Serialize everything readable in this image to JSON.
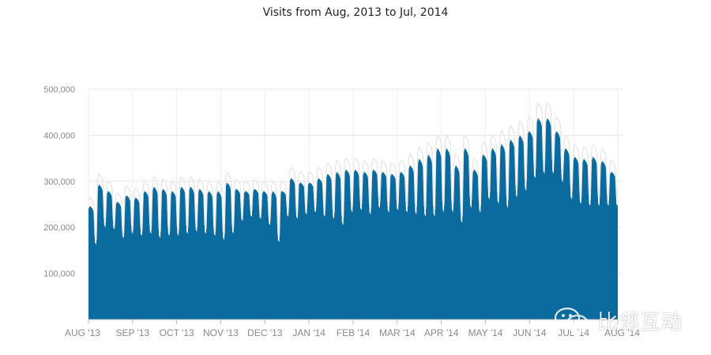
{
  "chart_data": {
    "type": "area",
    "title": "Visits from Aug, 2013 to Jul, 2014",
    "xlabel": "",
    "ylabel": "",
    "ylim": [
      0,
      500000
    ],
    "yticks": [
      "100,000",
      "200,000",
      "300,000",
      "400,000",
      "500,000"
    ],
    "ytick_values": [
      100000,
      200000,
      300000,
      400000,
      500000
    ],
    "x_tick_labels": [
      "AUG '13",
      "SEP '13",
      "OCT '13",
      "NOV '13",
      "DEC '13",
      "JAN '14",
      "FEB '14",
      "MAR '14",
      "APR '14",
      "MAY '14",
      "JUN '14",
      "JUL '14",
      "AUG '14"
    ],
    "x_start": "2013-08-01",
    "x_end": "2014-08-01",
    "grid": true,
    "colors": {
      "fill": "#0b6a9e",
      "line": "#e6e6e6",
      "grid": "#e5e5e5"
    },
    "series": [
      {
        "weekly_peaks": [
          265,
          315,
          300,
          275,
          290,
          285,
          300,
          310,
          305,
          300,
          310,
          310,
          305,
          300,
          300,
          320,
          305,
          300,
          305,
          300,
          300,
          300,
          330,
          320,
          320,
          330,
          340,
          345,
          350,
          350,
          345,
          350,
          345,
          340,
          345,
          360,
          375,
          385,
          400,
          400,
          360,
          400,
          350,
          385,
          400,
          410,
          420,
          430,
          440,
          470,
          470,
          440,
          400,
          380,
          375,
          380,
          370,
          345
        ],
        "weekly_troughs": [
          175,
          215,
          210,
          190,
          200,
          195,
          200,
          190,
          195,
          195,
          200,
          205,
          200,
          195,
          185,
          200,
          230,
          240,
          235,
          220,
          180,
          240,
          235,
          245,
          250,
          240,
          235,
          220,
          250,
          255,
          245,
          260,
          250,
          255,
          250,
          245,
          240,
          240,
          250,
          250,
          225,
          260,
          250,
          280,
          270,
          260,
          285,
          300,
          330,
          340,
          340,
          320,
          280,
          270,
          265,
          265,
          265,
          265
        ]
      }
    ]
  },
  "watermark": {
    "text": "比邻互动",
    "icon": "wechat-icon"
  }
}
